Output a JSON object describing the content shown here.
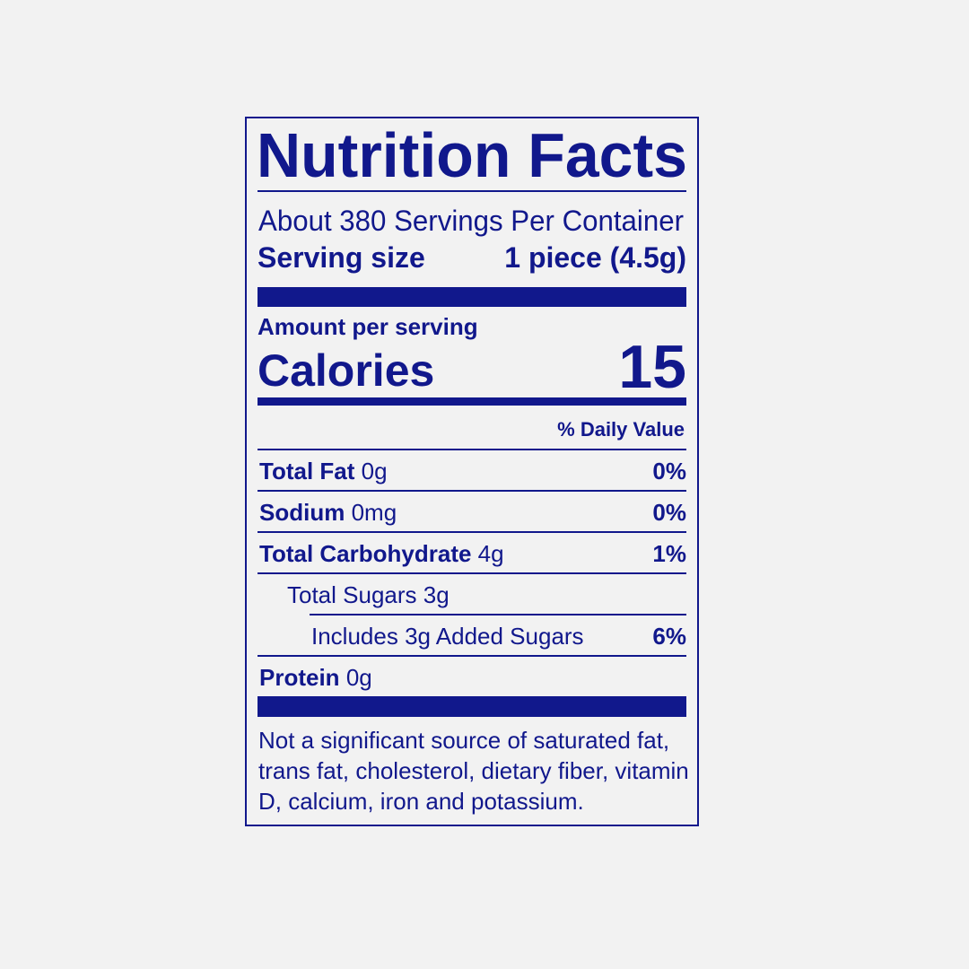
{
  "title": "Nutrition Facts",
  "servings": "About 380 Servings Per Container",
  "serving_size": {
    "label": "Serving size",
    "value": "1 piece (4.5g)"
  },
  "amount_per_serving": "Amount per serving",
  "calories": {
    "label": "Calories",
    "value": 15
  },
  "daily_value_header": "% Daily Value",
  "rows": [
    {
      "name": "Total Fat",
      "amount": "0g",
      "dv": "0%"
    },
    {
      "name": "Sodium",
      "amount": "0mg",
      "dv": "0%"
    },
    {
      "name": "Total Carbohydrate",
      "amount": "4g",
      "dv": "1%"
    },
    {
      "name": "Total Sugars 3g"
    },
    {
      "name": "Includes 3g Added Sugars",
      "dv": "6%"
    },
    {
      "name": "Protein",
      "amount": "0g"
    }
  ],
  "footnote": [
    "Not a significant source of saturated fat,",
    "trans fat, cholesterol, dietary fiber, vitamin",
    "D, calcium, iron and potassium."
  ]
}
